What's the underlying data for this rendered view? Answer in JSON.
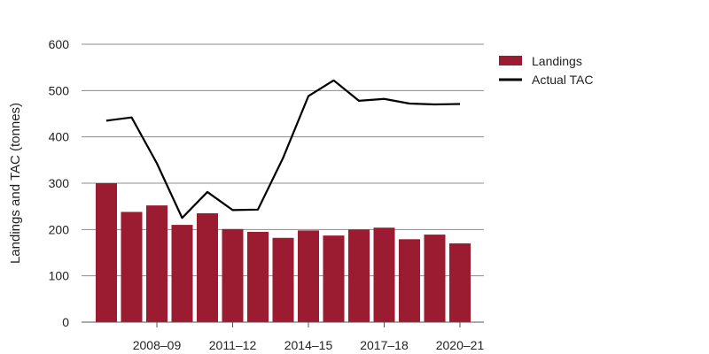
{
  "chart_data": {
    "type": "bar",
    "title": "",
    "xlabel": "",
    "ylabel": "Landings and TAC (tonnes)",
    "ylim": [
      0,
      600
    ],
    "yticks": [
      0,
      100,
      200,
      300,
      400,
      500,
      600
    ],
    "grid": true,
    "legend_position": "top-right",
    "x_tick_labels": [
      "2008–09",
      "2011–12",
      "2014–15",
      "2017–18",
      "2020–21"
    ],
    "x_tick_indices": [
      2,
      5,
      8,
      11,
      14
    ],
    "series": [
      {
        "name": "Landings",
        "type": "bar",
        "color": "#9b1b30",
        "values": [
          300,
          238,
          252,
          210,
          235,
          201,
          195,
          182,
          198,
          187,
          200,
          204,
          179,
          189,
          170
        ]
      },
      {
        "name": "Actual TAC",
        "type": "line",
        "color": "#000000",
        "values": [
          435,
          442,
          343,
          225,
          281,
          242,
          243,
          355,
          488,
          522,
          478,
          482,
          472,
          470,
          471
        ]
      }
    ]
  }
}
